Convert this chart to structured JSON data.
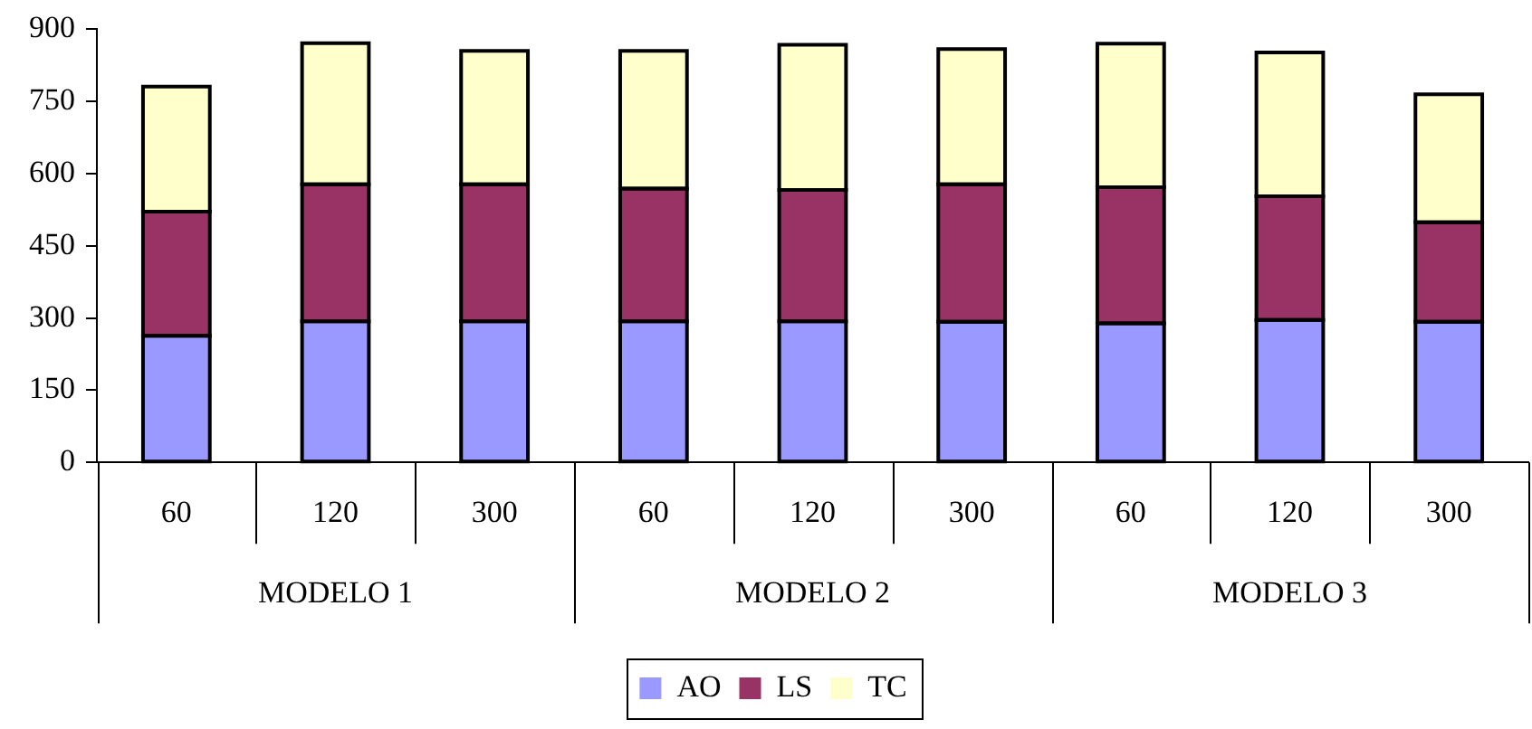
{
  "chart_data": {
    "type": "bar",
    "stacked": true,
    "categories": [
      "60",
      "120",
      "300",
      "60",
      "120",
      "300",
      "60",
      "120",
      "300"
    ],
    "annotations": [
      "MODELO 1",
      "MODELO 2",
      "MODELO 3"
    ],
    "series": [
      {
        "name": "AO",
        "color": "#9999ff",
        "values": [
          263,
          293,
          293,
          293,
          293,
          292,
          289,
          296,
          292
        ]
      },
      {
        "name": "LS",
        "color": "#993366",
        "values": [
          258,
          285,
          285,
          276,
          273,
          286,
          283,
          257,
          207
        ]
      },
      {
        "name": "TC",
        "color": "#ffffcc",
        "values": [
          260,
          293,
          277,
          286,
          302,
          281,
          298,
          299,
          266
        ]
      }
    ],
    "ylim": [
      0,
      900
    ],
    "yticks": [
      0,
      150,
      300,
      450,
      600,
      750,
      900
    ],
    "grid": false,
    "legend": "bottom"
  }
}
